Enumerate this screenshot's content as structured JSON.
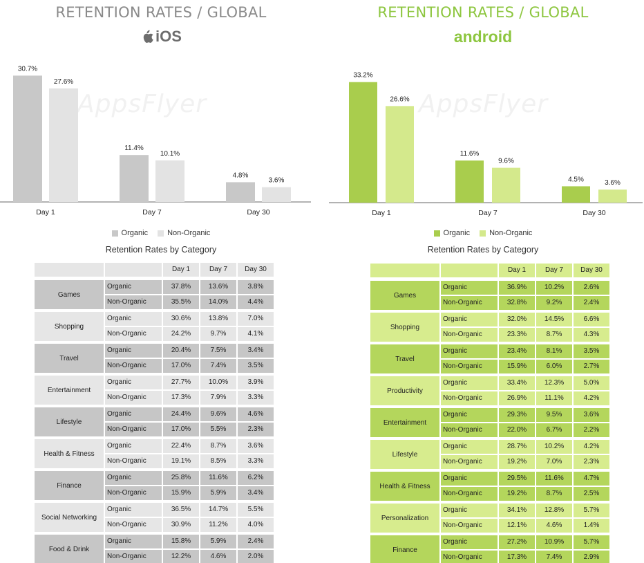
{
  "ios": {
    "title": "RETENTION RATES / GLOBAL",
    "platform_label": "iOS",
    "watermark": "AppsFlyer",
    "legend": [
      "Organic",
      "Non-Organic"
    ],
    "table_title": "Retention Rates by Category",
    "table_headers": [
      "Day 1",
      "Day 7",
      "Day 30"
    ],
    "colors": {
      "organic": "#c8c8c8",
      "non_organic": "#e3e3e3",
      "table_dark": "#c6c6c6",
      "table_light": "#e6e6e6"
    }
  },
  "android": {
    "title": "RETENTION RATES / GLOBAL",
    "platform_label": "android",
    "watermark": "AppsFlyer",
    "legend": [
      "Organic",
      "Non-Organic"
    ],
    "table_title": "Retention Rates by Category",
    "table_headers": [
      "Day 1",
      "Day 7",
      "Day 30"
    ],
    "colors": {
      "organic": "#a9cd4d",
      "non_organic": "#d4e98c",
      "table_dark": "#b4d65c",
      "table_light": "#d7ec8e"
    }
  },
  "chart_data": [
    {
      "type": "bar",
      "platform": "iOS",
      "categories": [
        "Day 1",
        "Day 7",
        "Day 30"
      ],
      "series": [
        {
          "name": "Organic",
          "values": [
            30.7,
            11.4,
            4.8
          ],
          "labels": [
            "30.7%",
            "11.4%",
            "4.8%"
          ]
        },
        {
          "name": "Non-Organic",
          "values": [
            27.6,
            10.1,
            3.6
          ],
          "labels": [
            "27.6%",
            "10.1%",
            "3.6%"
          ]
        }
      ],
      "title": "RETENTION RATES / GLOBAL",
      "legend_position": "bottom",
      "grid": false
    },
    {
      "type": "bar",
      "platform": "android",
      "categories": [
        "Day 1",
        "Day 7",
        "Day 30"
      ],
      "series": [
        {
          "name": "Organic",
          "values": [
            33.2,
            11.6,
            4.5
          ],
          "labels": [
            "33.2%",
            "11.6%",
            "4.5%"
          ]
        },
        {
          "name": "Non-Organic",
          "values": [
            26.6,
            9.6,
            3.6
          ],
          "labels": [
            "26.6%",
            "9.6%",
            "3.6%"
          ]
        }
      ],
      "title": "RETENTION RATES / GLOBAL",
      "legend_position": "bottom",
      "grid": false
    },
    {
      "type": "table",
      "platform": "iOS",
      "title": "Retention Rates by Category",
      "columns": [
        "Day 1",
        "Day 7",
        "Day 30"
      ],
      "rows": [
        {
          "category": "Games",
          "Organic": [
            "37.8%",
            "13.6%",
            "3.8%"
          ],
          "Non-Organic": [
            "35.5%",
            "14.0%",
            "4.4%"
          ]
        },
        {
          "category": "Shopping",
          "Organic": [
            "30.6%",
            "13.8%",
            "7.0%"
          ],
          "Non-Organic": [
            "24.2%",
            "9.7%",
            "4.1%"
          ]
        },
        {
          "category": "Travel",
          "Organic": [
            "20.4%",
            "7.5%",
            "3.4%"
          ],
          "Non-Organic": [
            "17.0%",
            "7.4%",
            "3.5%"
          ]
        },
        {
          "category": "Entertainment",
          "Organic": [
            "27.7%",
            "10.0%",
            "3.9%"
          ],
          "Non-Organic": [
            "17.3%",
            "7.9%",
            "3.3%"
          ]
        },
        {
          "category": "Lifestyle",
          "Organic": [
            "24.4%",
            "9.6%",
            "4.6%"
          ],
          "Non-Organic": [
            "17.0%",
            "5.5%",
            "2.3%"
          ]
        },
        {
          "category": "Health & Fitness",
          "Organic": [
            "22.4%",
            "8.7%",
            "3.6%"
          ],
          "Non-Organic": [
            "19.1%",
            "8.5%",
            "3.3%"
          ]
        },
        {
          "category": "Finance",
          "Organic": [
            "25.8%",
            "11.6%",
            "6.2%"
          ],
          "Non-Organic": [
            "15.9%",
            "5.9%",
            "3.4%"
          ]
        },
        {
          "category": "Social Networking",
          "Organic": [
            "36.5%",
            "14.7%",
            "5.5%"
          ],
          "Non-Organic": [
            "30.9%",
            "11.2%",
            "4.0%"
          ]
        },
        {
          "category": "Food & Drink",
          "Organic": [
            "15.8%",
            "5.9%",
            "2.4%"
          ],
          "Non-Organic": [
            "12.2%",
            "4.6%",
            "2.0%"
          ]
        }
      ]
    },
    {
      "type": "table",
      "platform": "android",
      "title": "Retention Rates by Category",
      "columns": [
        "Day 1",
        "Day 7",
        "Day 30"
      ],
      "rows": [
        {
          "category": "Games",
          "Organic": [
            "36.9%",
            "10.2%",
            "2.6%"
          ],
          "Non-Organic": [
            "32.8%",
            "9.2%",
            "2.4%"
          ]
        },
        {
          "category": "Shopping",
          "Organic": [
            "32.0%",
            "14.5%",
            "6.6%"
          ],
          "Non-Organic": [
            "23.3%",
            "8.7%",
            "4.3%"
          ]
        },
        {
          "category": "Travel",
          "Organic": [
            "23.4%",
            "8.1%",
            "3.5%"
          ],
          "Non-Organic": [
            "15.9%",
            "6.0%",
            "2.7%"
          ]
        },
        {
          "category": "Productivity",
          "Organic": [
            "33.4%",
            "12.3%",
            "5.0%"
          ],
          "Non-Organic": [
            "26.9%",
            "11.1%",
            "4.2%"
          ]
        },
        {
          "category": "Entertainment",
          "Organic": [
            "29.3%",
            "9.5%",
            "3.6%"
          ],
          "Non-Organic": [
            "22.0%",
            "6.7%",
            "2.2%"
          ]
        },
        {
          "category": "Lifestyle",
          "Organic": [
            "28.7%",
            "10.2%",
            "4.2%"
          ],
          "Non-Organic": [
            "19.2%",
            "7.0%",
            "2.3%"
          ]
        },
        {
          "category": "Health & Fitness",
          "Organic": [
            "29.5%",
            "11.6%",
            "4.7%"
          ],
          "Non-Organic": [
            "19.2%",
            "8.7%",
            "2.5%"
          ]
        },
        {
          "category": "Personalization",
          "Organic": [
            "34.1%",
            "12.8%",
            "5.7%"
          ],
          "Non-Organic": [
            "12.1%",
            "4.6%",
            "1.4%"
          ]
        },
        {
          "category": "Finance",
          "Organic": [
            "27.2%",
            "10.9%",
            "5.7%"
          ],
          "Non-Organic": [
            "17.3%",
            "7.4%",
            "2.9%"
          ]
        }
      ]
    }
  ]
}
